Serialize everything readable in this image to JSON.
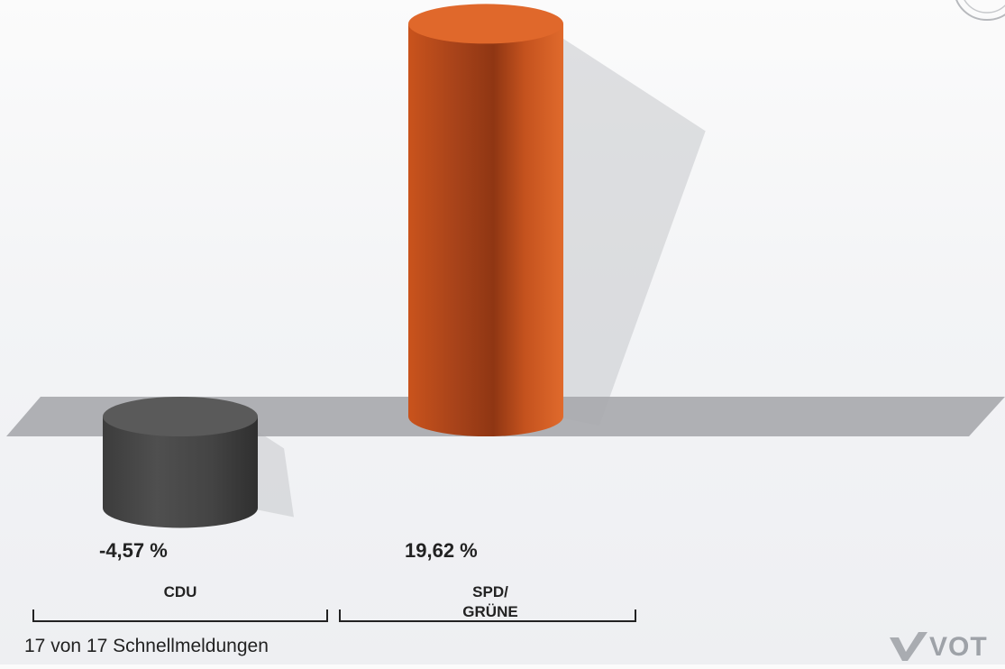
{
  "chart_data": {
    "type": "bar",
    "subtype": "3d-cylinder-difference",
    "categories": [
      "CDU",
      "SPD/\nGRÜNE"
    ],
    "values": [
      -4.57,
      19.62
    ],
    "value_labels": [
      "-4,57 %",
      "19,62 %"
    ],
    "colors": [
      "#4a4a4a",
      "#d9622a"
    ],
    "title": "",
    "xlabel": "",
    "ylabel": "",
    "grid": false,
    "legend": "none"
  },
  "footer": {
    "note": "17 von 17 Schnellmeldungen"
  },
  "branding": {
    "text": "VOT"
  }
}
